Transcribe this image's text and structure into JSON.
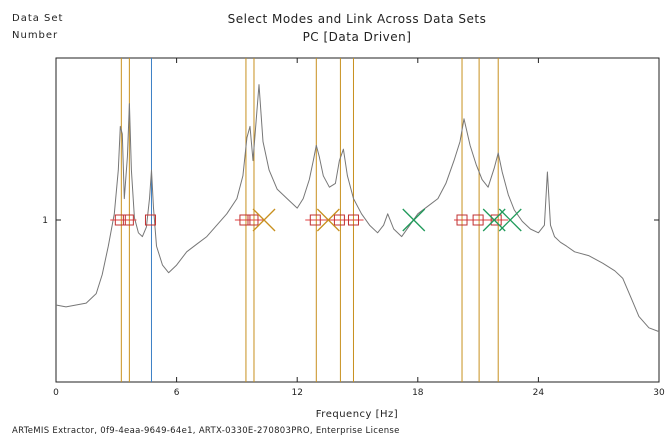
{
  "side_label": {
    "line1": "Data Set",
    "line2": "Number"
  },
  "footer": "ARTeMIS Extractor, 0f9-4eaa-9649-64e1, ARTX-0330E-270803PRO, Enterprise License",
  "colors": {
    "background": "#ffffff",
    "axis": "#222222",
    "spectrum": "#777777",
    "orange_line": "#c8901e",
    "blue_line": "#3a7fc4",
    "red_line": "#e04040",
    "square_marker": "#c03030",
    "orange_x": "#c8901e",
    "green_x": "#1f9a5a"
  },
  "chart_data": {
    "type": "line",
    "title": "Select Modes and Link Across Data Sets",
    "subtitle": "PC [Data Driven]",
    "xlabel": "Frequency [Hz]",
    "xlim": [
      0,
      30
    ],
    "xticks": [
      0,
      6,
      12,
      18,
      24,
      30
    ],
    "y_tick_label": "1",
    "grid": false,
    "spectrum": {
      "name": "",
      "x": [
        0,
        0.5,
        1,
        1.5,
        2,
        2.3,
        2.6,
        2.9,
        3.1,
        3.2,
        3.3,
        3.4,
        3.55,
        3.65,
        3.75,
        3.9,
        4.1,
        4.3,
        4.5,
        4.65,
        4.75,
        4.85,
        5.0,
        5.3,
        5.6,
        6,
        6.5,
        7,
        7.5,
        8,
        8.5,
        9,
        9.3,
        9.5,
        9.65,
        9.8,
        9.95,
        10.1,
        10.3,
        10.6,
        11,
        11.5,
        12,
        12.3,
        12.6,
        12.8,
        12.95,
        13.1,
        13.3,
        13.6,
        13.9,
        14.1,
        14.3,
        14.5,
        14.8,
        15.2,
        15.6,
        16,
        16.3,
        16.5,
        16.8,
        17.2,
        17.6,
        18,
        18.5,
        19,
        19.4,
        19.8,
        20.1,
        20.3,
        20.6,
        20.9,
        21.2,
        21.5,
        21.8,
        22.0,
        22.2,
        22.5,
        22.8,
        23.2,
        23.6,
        24,
        24.3,
        24.45,
        24.6,
        24.8,
        25.1,
        25.4,
        25.8,
        26.5,
        27.2,
        27.8,
        28.2,
        28.6,
        29.0,
        29.5,
        30
      ],
      "y": [
        0.24,
        0.23,
        0.24,
        0.25,
        0.3,
        0.4,
        0.55,
        0.72,
        0.95,
        1.18,
        1.14,
        0.8,
        1.02,
        1.3,
        0.95,
        0.7,
        0.62,
        0.6,
        0.65,
        0.8,
        0.95,
        0.75,
        0.55,
        0.45,
        0.41,
        0.45,
        0.52,
        0.56,
        0.6,
        0.66,
        0.72,
        0.8,
        0.92,
        1.12,
        1.18,
        1.0,
        1.2,
        1.4,
        1.1,
        0.95,
        0.85,
        0.8,
        0.75,
        0.8,
        0.9,
        1.0,
        1.08,
        1.02,
        0.92,
        0.86,
        0.88,
        1.0,
        1.06,
        0.92,
        0.8,
        0.72,
        0.66,
        0.62,
        0.66,
        0.72,
        0.64,
        0.6,
        0.66,
        0.72,
        0.76,
        0.8,
        0.88,
        1.0,
        1.1,
        1.22,
        1.08,
        0.98,
        0.9,
        0.86,
        0.96,
        1.04,
        0.94,
        0.82,
        0.74,
        0.68,
        0.64,
        0.62,
        0.66,
        0.94,
        0.66,
        0.6,
        0.57,
        0.55,
        0.52,
        0.5,
        0.46,
        0.42,
        0.38,
        0.28,
        0.18,
        0.12,
        0.1
      ]
    },
    "orange_lines_x": [
      3.25,
      3.65,
      9.45,
      9.85,
      12.95,
      14.15,
      14.8,
      20.2,
      21.05,
      22.0
    ],
    "blue_lines_x": [
      4.75
    ],
    "marker_row": {
      "level": "1",
      "red_segments": [
        [
          2.7,
          4.0
        ],
        [
          8.9,
          10.3
        ],
        [
          12.4,
          15.3
        ],
        [
          19.8,
          22.5
        ]
      ],
      "squares_x": [
        3.2,
        3.6,
        4.7,
        9.4,
        9.8,
        12.9,
        14.1,
        14.8,
        20.2,
        21.0,
        21.9
      ],
      "orange_x_markers": [
        10.35,
        13.55
      ],
      "green_x_markers": [
        17.8,
        21.8,
        22.6
      ]
    }
  }
}
